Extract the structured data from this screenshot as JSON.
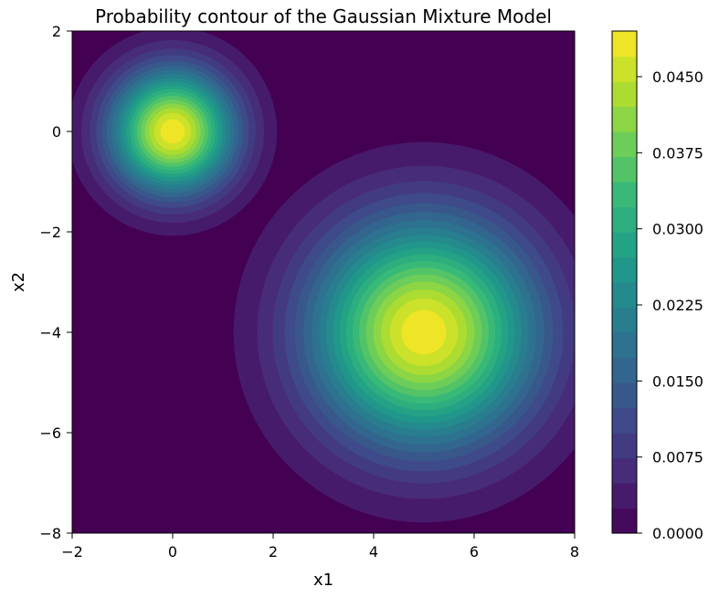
{
  "chart_data": {
    "type": "contour",
    "title": "Probability contour of the Gaussian Mixture Model",
    "xlabel": "x1",
    "ylabel": "x2",
    "xlim": [
      -2,
      8
    ],
    "ylim": [
      -8,
      2
    ],
    "xticks": [
      -2,
      0,
      2,
      4,
      6,
      8
    ],
    "yticks": [
      -8,
      -6,
      -4,
      -2,
      0,
      2
    ],
    "xtick_labels": [
      "−2",
      "0",
      "2",
      "4",
      "6",
      "8"
    ],
    "ytick_labels": [
      "−8",
      "−6",
      "−4",
      "−2",
      "0",
      "2"
    ],
    "colormap": "viridis",
    "components": [
      {
        "mean": [
          0,
          0
        ],
        "sigma": 0.85,
        "peak_density": 0.049
      },
      {
        "mean": [
          5,
          -4
        ],
        "sigma": 1.55,
        "peak_density": 0.049
      }
    ],
    "colorbar": {
      "range": [
        0,
        0.0495
      ],
      "levels": 20,
      "ticks": [
        0,
        0.0075,
        0.015,
        0.0225,
        0.03,
        0.0375,
        0.045
      ],
      "tick_labels": [
        "0.0000",
        "0.0075",
        "0.0150",
        "0.0225",
        "0.0300",
        "0.0375",
        "0.0450"
      ]
    },
    "grid": false
  }
}
